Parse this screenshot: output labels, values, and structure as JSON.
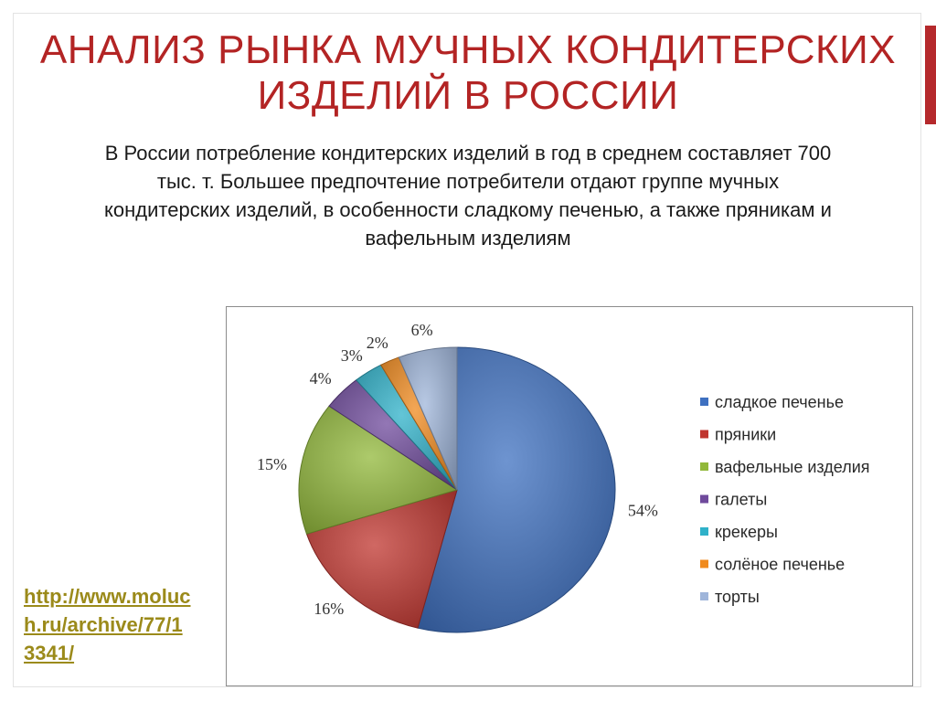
{
  "slide": {
    "title_lines": [
      "АНАЛИЗ РЫНКА МУЧНЫХ КОНДИТЕРСКИХ",
      "ИЗДЕЛИЙ В РОССИИ"
    ],
    "intro_lines": [
      "В России потребление кондитерских изделий в год в среднем составляет 700",
      "тыс. т. Большее предпочтение потребители отдают группе мучных",
      "кондитерских изделий, в особенности сладкому печенью, а также пряникам и",
      "вафельным изделиям"
    ],
    "source_link_lines": [
      "http://www.moluc",
      "h.ru/archive/77/1",
      "3341/"
    ],
    "colors": {
      "title": "#b32424",
      "accent": "#b5292c",
      "link": "#9b8a1a"
    }
  },
  "chart_data": {
    "type": "pie",
    "title": "",
    "categories": [
      "сладкое печенье",
      "пряники",
      "вафельные изделия",
      "галеты",
      "крекеры",
      "солёное печенье",
      "торты"
    ],
    "values": [
      54,
      16,
      15,
      4,
      3,
      2,
      6
    ],
    "labels": [
      "54%",
      "16%",
      "15%",
      "4%",
      "3%",
      "2%",
      "6%"
    ],
    "colors": [
      "#3e70c0",
      "#c0352f",
      "#91b83a",
      "#6f4a9c",
      "#2fb1c9",
      "#f08a1d",
      "#9fb5da"
    ],
    "legend_position": "right",
    "unit": "%"
  }
}
